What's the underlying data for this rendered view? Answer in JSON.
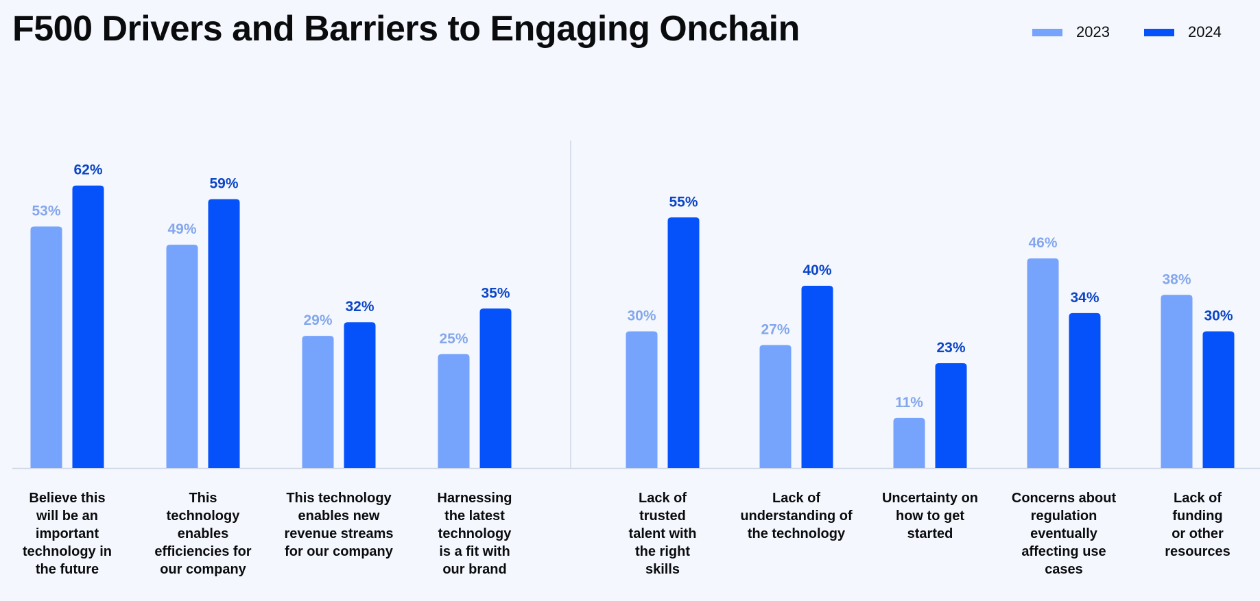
{
  "title": "F500 Drivers and Barriers to Engaging Onchain",
  "colors": {
    "s2023": "#76a3fb",
    "s2024": "#0652fa",
    "l2023": "#84a7ec",
    "l2024": "#0b45c7"
  },
  "chart_data": {
    "type": "bar",
    "title": "F500 Drivers and Barriers to Engaging Onchain",
    "ylim": [
      0,
      70
    ],
    "grid": false,
    "legend_position": "top-right",
    "categories": [
      "Believe this will be an important technology in the future",
      "This technology enables efficiencies for our company",
      "This technology enables new revenue streams for our company",
      "Harnessing the latest technology is a fit with our brand",
      "Lack of trusted talent with the right skills",
      "Lack of understanding of the technology",
      "Uncertainty on how to get started",
      "Concerns about regulation eventually affecting use cases",
      "Lack of funding or other resources"
    ],
    "category_lines": [
      [
        "Believe this",
        "will be an",
        "important",
        "technology in",
        "the future"
      ],
      [
        "This",
        "technology",
        "enables",
        "efficiencies for",
        "our company"
      ],
      [
        "This technology",
        "enables new",
        "revenue streams",
        "for our company"
      ],
      [
        "Harnessing",
        "the latest",
        "technology",
        "is a fit with",
        "our brand"
      ],
      [
        "Lack of",
        "trusted",
        "talent with",
        "the right",
        "skills"
      ],
      [
        "Lack of",
        "understanding of",
        "the technology"
      ],
      [
        "Uncertainty on",
        "how to get",
        "started"
      ],
      [
        "Concerns about",
        "regulation",
        "eventually",
        "affecting use",
        "cases"
      ],
      [
        "Lack of",
        "funding",
        "or other",
        "resources"
      ]
    ],
    "series": [
      {
        "name": "2023",
        "values": [
          53,
          49,
          29,
          25,
          30,
          27,
          11,
          46,
          38
        ],
        "labels": [
          "53%",
          "49%",
          "29%",
          "25%",
          "30%",
          "27%",
          "11%",
          "46%",
          "38%"
        ]
      },
      {
        "name": "2024",
        "values": [
          62,
          59,
          32,
          35,
          55,
          40,
          23,
          34,
          30
        ],
        "labels": [
          "62%",
          "59%",
          "32%",
          "35%",
          "55%",
          "40%",
          "23%",
          "34%",
          "30%"
        ]
      }
    ]
  }
}
